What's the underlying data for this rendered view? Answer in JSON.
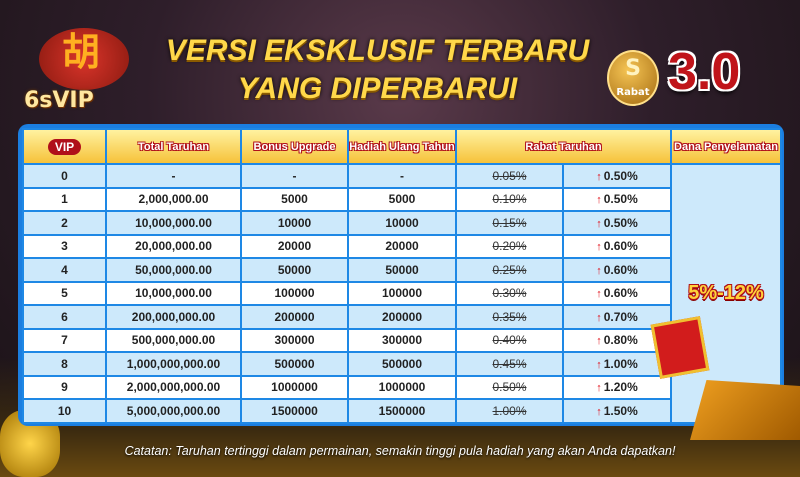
{
  "logo": {
    "brand": "6sVIP",
    "char": "胡"
  },
  "title": {
    "line1": "VERSI EKSKLUSIF TERBARU",
    "line2": "YANG DIPERBARUI"
  },
  "badge": {
    "symbol": "S",
    "label": "Rabat"
  },
  "version": "3.0",
  "table": {
    "headers": {
      "vip": "VIP",
      "total": "Total Taruhan",
      "bonus": "Bonus Upgrade",
      "hadiah": "Hadiah Ulang Tahun",
      "rabat": "Rabat Taruhan",
      "dana": "Dana Penyelamatan"
    },
    "dana_value": "5%-12%",
    "rows": [
      {
        "vip": "0",
        "total": "-",
        "bonus": "-",
        "hadiah": "-",
        "old": "0.05%",
        "new": "0.50%"
      },
      {
        "vip": "1",
        "total": "2,000,000.00",
        "bonus": "5000",
        "hadiah": "5000",
        "old": "0.10%",
        "new": "0.50%"
      },
      {
        "vip": "2",
        "total": "10,000,000.00",
        "bonus": "10000",
        "hadiah": "10000",
        "old": "0.15%",
        "new": "0.50%"
      },
      {
        "vip": "3",
        "total": "20,000,000.00",
        "bonus": "20000",
        "hadiah": "20000",
        "old": "0.20%",
        "new": "0.60%"
      },
      {
        "vip": "4",
        "total": "50,000,000.00",
        "bonus": "50000",
        "hadiah": "50000",
        "old": "0.25%",
        "new": "0.60%"
      },
      {
        "vip": "5",
        "total": "10,000,000.00",
        "bonus": "100000",
        "hadiah": "100000",
        "old": "0.30%",
        "new": "0.60%"
      },
      {
        "vip": "6",
        "total": "200,000,000.00",
        "bonus": "200000",
        "hadiah": "200000",
        "old": "0.35%",
        "new": "0.70%"
      },
      {
        "vip": "7",
        "total": "500,000,000.00",
        "bonus": "300000",
        "hadiah": "300000",
        "old": "0.40%",
        "new": "0.80%"
      },
      {
        "vip": "8",
        "total": "1,000,000,000.00",
        "bonus": "500000",
        "hadiah": "500000",
        "old": "0.45%",
        "new": "1.00%"
      },
      {
        "vip": "9",
        "total": "2,000,000,000.00",
        "bonus": "1000000",
        "hadiah": "1000000",
        "old": "0.50%",
        "new": "1.20%"
      },
      {
        "vip": "10",
        "total": "5,000,000,000.00",
        "bonus": "1500000",
        "hadiah": "1500000",
        "old": "1.00%",
        "new": "1.50%"
      }
    ]
  },
  "note": "Catatan: Taruhan tertinggi dalam permainan, semakin tinggi pula hadiah yang akan Anda dapatkan!",
  "icons": {
    "up": "arrow-up-icon"
  },
  "colors": {
    "accent_red": "#b0101a",
    "table_blue": "#1e88e5",
    "gold": "#ffd84a"
  }
}
